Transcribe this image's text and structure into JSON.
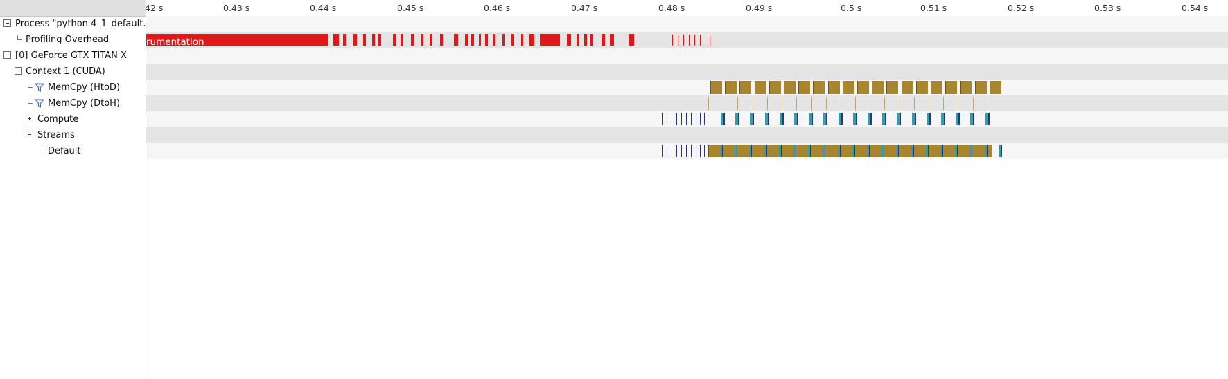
{
  "axis": {
    "ticks": [
      "42 s",
      "0.43 s",
      "0.44 s",
      "0.45 s",
      "0.46 s",
      "0.47 s",
      "0.48 s",
      "0.49 s",
      "0.5 s",
      "0.51 s",
      "0.52 s",
      "0.53 s",
      "0.54 s"
    ]
  },
  "tree": {
    "process": "Process \"python 4_1_default...",
    "profiling_overhead": "Profiling Overhead",
    "gpu": "[0] GeForce GTX TITAN X",
    "context": "Context 1 (CUDA)",
    "memcpy_htod": "MemCpy (HtoD)",
    "memcpy_dtoh": "MemCpy (DtoH)",
    "compute": "Compute",
    "streams": "Streams",
    "default_stream": "Default"
  },
  "timeline": {
    "instrumentation_label": "rumentation"
  },
  "colors": {
    "profiling": "#e3161a",
    "memcpy_htod": "#a8852f",
    "memcpy_dtoh": "#b8a570",
    "compute_a": "#3a9aa5",
    "compute_b": "#2b3577"
  },
  "icons": {
    "collapse": "minus-box-icon",
    "expand": "plus-box-icon",
    "filter": "funnel-icon"
  }
}
